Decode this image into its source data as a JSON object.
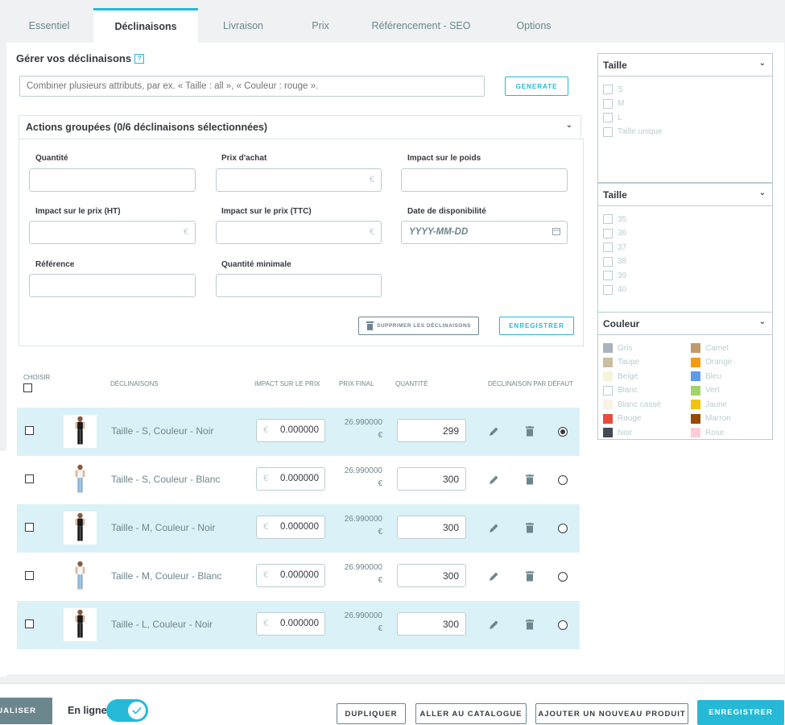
{
  "tabs": [
    "Essentiel",
    "Déclinaisons",
    "Livraison",
    "Prix",
    "Référencement - SEO",
    "Options"
  ],
  "manage": {
    "title": "Gérer vos déclinaisons",
    "help": "?",
    "combine_placeholder": "Combiner plusieurs attributs, par ex. « Taille : all », « Couleur : rouge ».",
    "generate": "GENERATE"
  },
  "bulk": {
    "header": "Actions groupées (0/6 déclinaisons sélectionnées)",
    "fields": {
      "quantity": "Quantité",
      "purchase_price": "Prix d'achat",
      "weight_impact": "Impact sur le poids",
      "price_impact_ht": "Impact sur le prix (HT)",
      "price_impact_ttc": "Impact sur le prix (TTC)",
      "availability_date": "Date de disponibilité",
      "reference": "Référence",
      "min_quantity": "Quantité minimale"
    },
    "currency": "€",
    "date_placeholder": "YYYY-MM-DD",
    "delete_button": "SUPPRIMER LES DÉCLINAISONS",
    "save_button": "ENREGISTRER"
  },
  "table": {
    "headers": {
      "choose": "CHOISIR",
      "combinations": "DÉCLINAISONS",
      "impact": "IMPACT SUR LE PRIX",
      "final": "PRIX FINAL",
      "quantity": "QUANTITÉ",
      "default": "DÉCLINAISON PAR DÉFAUT"
    },
    "rows": [
      {
        "name": "Taille - S, Couleur - Noir",
        "impact": "0.000000",
        "final": "26.990000",
        "quantity": "299",
        "default": true,
        "shirt": "black"
      },
      {
        "name": "Taille - S, Couleur - Blanc",
        "impact": "0.000000",
        "final": "26.990000",
        "quantity": "300",
        "default": false,
        "shirt": "white"
      },
      {
        "name": "Taille - M, Couleur - Noir",
        "impact": "0.000000",
        "final": "26.990000",
        "quantity": "300",
        "default": false,
        "shirt": "black"
      },
      {
        "name": "Taille - M, Couleur - Blanc",
        "impact": "0.000000",
        "final": "26.990000",
        "quantity": "300",
        "default": false,
        "shirt": "white"
      },
      {
        "name": "Taille - L, Couleur - Noir",
        "impact": "0.000000",
        "final": "26.990000",
        "quantity": "300",
        "default": false,
        "shirt": "black"
      }
    ]
  },
  "attributes": [
    {
      "title": "Taille",
      "options": [
        "S",
        "M",
        "L",
        "Taille unique"
      ]
    },
    {
      "title": "Taille",
      "options": [
        "35",
        "36",
        "37",
        "38",
        "39",
        "40"
      ]
    },
    {
      "title": "Couleur",
      "colors": [
        {
          "name": "Gris",
          "color": "#aab2bd"
        },
        {
          "name": "Camel",
          "color": "#c19a6b"
        },
        {
          "name": "Taupe",
          "color": "#c8bfa1"
        },
        {
          "name": "Orange",
          "color": "#f39c11"
        },
        {
          "name": "Beige",
          "color": "#f5f5dc"
        },
        {
          "name": "Bleu",
          "color": "#5d9cec"
        },
        {
          "name": "Blanc",
          "color": "#ffffff"
        },
        {
          "name": "Vert",
          "color": "#a0d468"
        },
        {
          "name": "Blanc cassé",
          "color": "#fbf2e6"
        },
        {
          "name": "Jaune",
          "color": "#f1c40f"
        },
        {
          "name": "Rouge",
          "color": "#e84c3d"
        },
        {
          "name": "Marron",
          "color": "#964b00"
        },
        {
          "name": "Noir",
          "color": "#434a54"
        },
        {
          "name": "Rose",
          "color": "#fcccd9"
        }
      ]
    }
  ],
  "footer": {
    "preview": "SUALISER",
    "online_label": "En ligne",
    "duplicate": "DUPLIQUER",
    "catalog": "ALLER AU CATALOGUE",
    "new_product": "AJOUTER UN NOUVEAU PRODUIT",
    "save": "ENREGISTRER"
  },
  "colors": {
    "accent": "#25b9d7",
    "row_highlight": "#daf2f7",
    "muted": "#6c868e"
  }
}
